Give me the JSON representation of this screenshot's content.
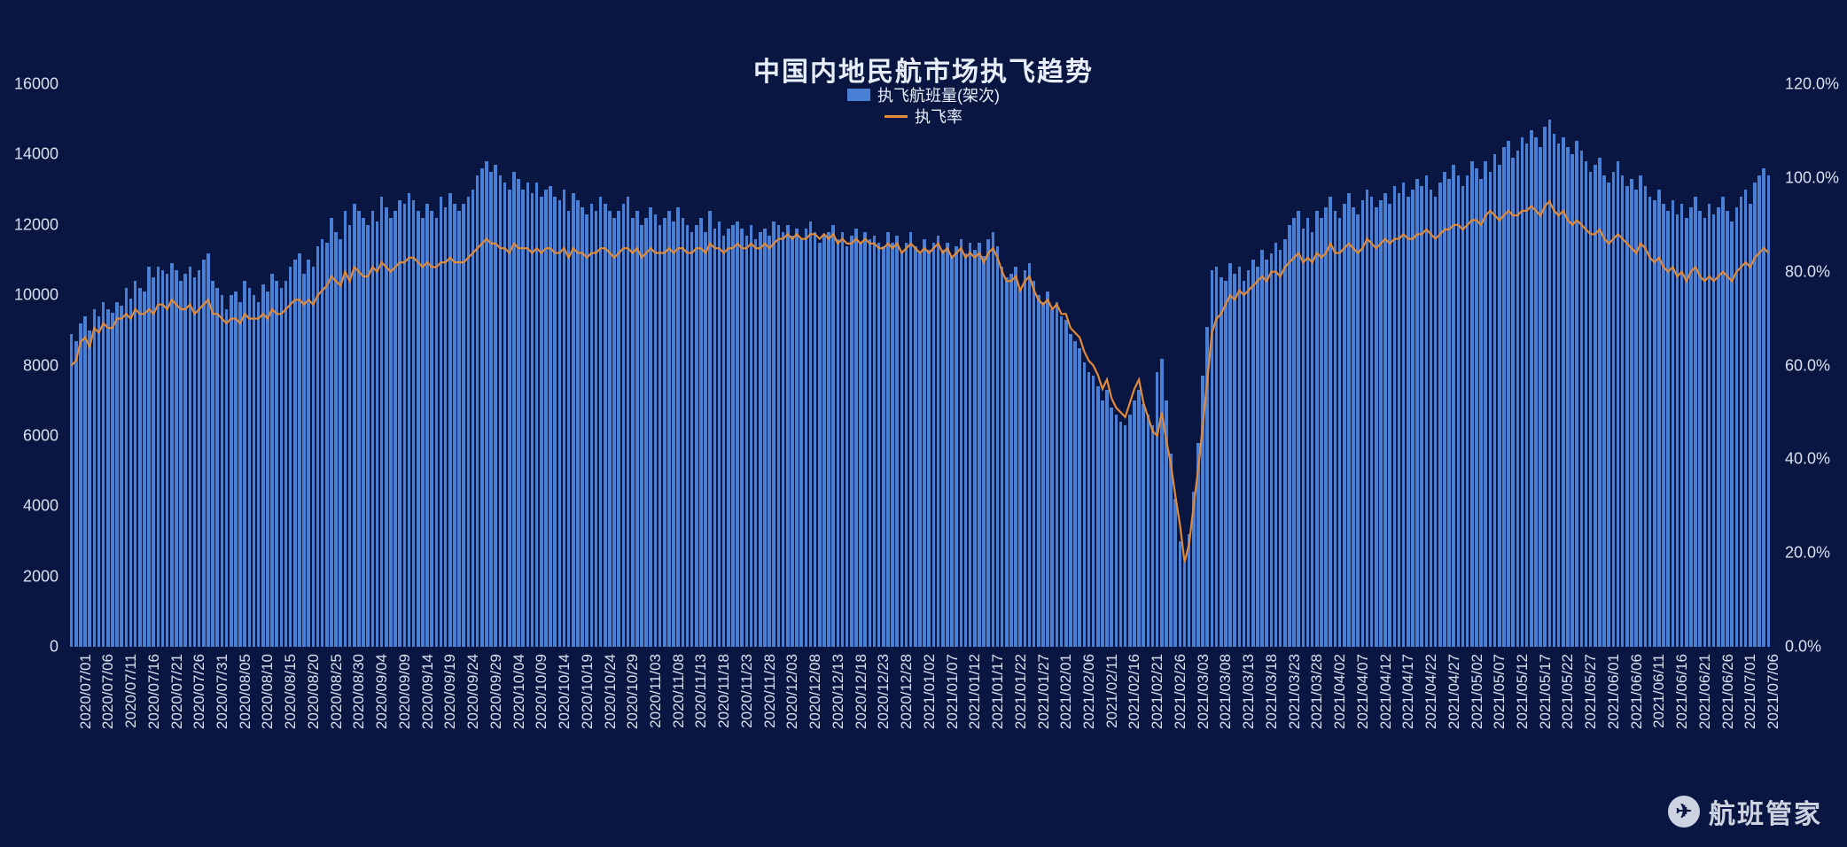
{
  "title": "中国内地民航市场执飞趋势",
  "legend": {
    "bar_label": "执飞航班量(架次)",
    "line_label": "执飞率"
  },
  "colors": {
    "background": "#0a1642",
    "bar": "#4a7fd6",
    "line": "#e08a3a",
    "text": "#e8eef7",
    "axis_text": "#d8e0ef"
  },
  "watermark": "航班管家",
  "chart": {
    "type": "bar+line",
    "y_left": {
      "min": 0,
      "max": 16000,
      "step": 2000,
      "label_fmt": "int"
    },
    "y_right": {
      "min": 0,
      "max": 120,
      "step": 20,
      "label_fmt": "pct"
    },
    "x_labels": [
      "2020/07/01",
      "2020/07/06",
      "2020/07/11",
      "2020/07/16",
      "2020/07/21",
      "2020/07/26",
      "2020/07/31",
      "2020/08/05",
      "2020/08/10",
      "2020/08/15",
      "2020/08/20",
      "2020/08/25",
      "2020/08/30",
      "2020/09/04",
      "2020/09/09",
      "2020/09/14",
      "2020/09/19",
      "2020/09/24",
      "2020/09/29",
      "2020/10/04",
      "2020/10/09",
      "2020/10/14",
      "2020/10/19",
      "2020/10/24",
      "2020/10/29",
      "2020/11/03",
      "2020/11/08",
      "2020/11/13",
      "2020/11/18",
      "2020/11/23",
      "2020/11/28",
      "2020/12/03",
      "2020/12/08",
      "2020/12/13",
      "2020/12/18",
      "2020/12/23",
      "2020/12/28",
      "2021/01/02",
      "2021/01/07",
      "2021/01/12",
      "2021/01/17",
      "2021/01/22",
      "2021/01/27",
      "2021/02/01",
      "2021/02/06",
      "2021/02/11",
      "2021/02/16",
      "2021/02/21",
      "2021/02/26",
      "2021/03/03",
      "2021/03/08",
      "2021/03/13",
      "2021/03/18",
      "2021/03/23",
      "2021/03/28",
      "2021/04/02",
      "2021/04/07",
      "2021/04/12",
      "2021/04/17",
      "2021/04/22",
      "2021/04/27",
      "2021/05/02",
      "2021/05/07",
      "2021/05/12",
      "2021/05/17",
      "2021/05/22",
      "2021/05/27",
      "2021/06/01",
      "2021/06/06",
      "2021/06/11",
      "2021/06/16",
      "2021/06/21",
      "2021/06/26",
      "2021/07/01",
      "2021/07/06"
    ],
    "bars": [
      8900,
      8700,
      9200,
      9400,
      9000,
      9600,
      9400,
      9800,
      9600,
      9500,
      9800,
      9700,
      10200,
      9900,
      10400,
      10200,
      10100,
      10800,
      10500,
      10800,
      10700,
      10600,
      10900,
      10700,
      10400,
      10600,
      10800,
      10500,
      10700,
      11000,
      11200,
      10400,
      10200,
      10000,
      9600,
      10000,
      10100,
      9800,
      10400,
      10200,
      10000,
      9800,
      10300,
      10100,
      10600,
      10400,
      10200,
      10400,
      10800,
      11000,
      11200,
      10600,
      11000,
      10800,
      11400,
      11600,
      11500,
      12200,
      11800,
      11600,
      12400,
      12000,
      12600,
      12400,
      12200,
      12000,
      12400,
      12100,
      12800,
      12500,
      12200,
      12400,
      12700,
      12600,
      12900,
      12700,
      12400,
      12200,
      12600,
      12400,
      12200,
      12800,
      12500,
      12900,
      12600,
      12400,
      12600,
      12800,
      13000,
      13400,
      13600,
      13800,
      13500,
      13700,
      13400,
      13200,
      13000,
      13500,
      13300,
      13000,
      13200,
      12900,
      13200,
      12800,
      13000,
      13100,
      12800,
      12700,
      13000,
      12400,
      12900,
      12700,
      12500,
      12300,
      12600,
      12400,
      12800,
      12600,
      12400,
      12200,
      12400,
      12600,
      12800,
      12200,
      12400,
      12000,
      12200,
      12500,
      12300,
      12000,
      12200,
      12400,
      12100,
      12500,
      12200,
      12000,
      11800,
      12000,
      12200,
      11800,
      12400,
      11900,
      12100,
      11700,
      11900,
      12000,
      12100,
      11900,
      11700,
      12000,
      11600,
      11800,
      11900,
      11700,
      12100,
      12000,
      11800,
      12000,
      11700,
      11900,
      11600,
      11900,
      12100,
      11800,
      11500,
      11700,
      11800,
      12000,
      11600,
      11800,
      11400,
      11700,
      11900,
      11500,
      11800,
      11600,
      11700,
      11500,
      11400,
      11800,
      11500,
      11700,
      11200,
      11500,
      11800,
      11400,
      11200,
      11600,
      11300,
      11500,
      11700,
      11300,
      11500,
      11100,
      11400,
      11600,
      11200,
      11500,
      11300,
      11500,
      11100,
      11600,
      11800,
      11400,
      10800,
      10500,
      10600,
      10800,
      10200,
      10700,
      10900,
      10400,
      10000,
      9800,
      10100,
      9600,
      9800,
      9400,
      9300,
      8900,
      8700,
      8500,
      8100,
      7800,
      7700,
      7400,
      7000,
      7300,
      6800,
      6600,
      6400,
      6300,
      6600,
      7000,
      7300,
      6900,
      6600,
      6300,
      7800,
      8200,
      7000,
      5500,
      4200,
      3000,
      2400,
      3200,
      4400,
      5800,
      7700,
      9100,
      10700,
      10800,
      10500,
      10400,
      10900,
      10600,
      10800,
      10400,
      10700,
      11000,
      10800,
      11300,
      11000,
      11200,
      11500,
      11300,
      11600,
      12000,
      12200,
      12400,
      11900,
      12200,
      11800,
      12400,
      12200,
      12500,
      12800,
      12400,
      12200,
      12600,
      12900,
      12500,
      12300,
      12700,
      13000,
      12800,
      12500,
      12700,
      12900,
      12600,
      13100,
      12900,
      13200,
      12800,
      13000,
      13300,
      13100,
      13400,
      13000,
      12800,
      13200,
      13500,
      13300,
      13700,
      13400,
      13100,
      13400,
      13800,
      13600,
      13300,
      13800,
      13500,
      14000,
      13700,
      14200,
      14400,
      13900,
      14100,
      14500,
      14300,
      14700,
      14500,
      14200,
      14800,
      15000,
      14600,
      14300,
      14500,
      14200,
      14000,
      14400,
      14100,
      13800,
      13500,
      13700,
      13900,
      13400,
      13200,
      13500,
      13800,
      13400,
      13100,
      13300,
      13000,
      13400,
      13100,
      12800,
      12700,
      13000,
      12600,
      12400,
      12700,
      12300,
      12600,
      12200,
      12500,
      12800,
      12400,
      12200,
      12600,
      12300,
      12500,
      12800,
      12400,
      12100,
      12500,
      12800,
      13000,
      12600,
      13200,
      13400,
      13600,
      13400
    ],
    "line_pct": [
      60,
      61,
      65,
      66,
      64,
      68,
      67,
      69,
      68,
      68,
      70,
      70,
      71,
      70,
      72,
      71,
      71,
      72,
      71,
      73,
      73,
      72,
      74,
      73,
      72,
      72,
      73,
      71,
      72,
      73,
      74,
      71,
      71,
      70,
      69,
      70,
      70,
      69,
      71,
      70,
      70,
      70,
      71,
      70,
      72,
      71,
      71,
      72,
      73,
      74,
      74,
      73,
      74,
      73,
      75,
      76,
      77,
      79,
      78,
      77,
      80,
      78,
      81,
      80,
      79,
      79,
      81,
      80,
      82,
      81,
      80,
      81,
      82,
      82,
      83,
      83,
      82,
      81,
      82,
      81,
      81,
      82,
      82,
      83,
      82,
      82,
      82,
      83,
      84,
      85,
      86,
      87,
      86,
      86,
      85,
      85,
      84,
      86,
      85,
      85,
      85,
      84,
      85,
      84,
      85,
      85,
      84,
      84,
      85,
      83,
      85,
      84,
      84,
      83,
      84,
      84,
      85,
      85,
      84,
      83,
      84,
      85,
      85,
      84,
      85,
      83,
      84,
      85,
      84,
      84,
      84,
      85,
      84,
      85,
      85,
      84,
      84,
      85,
      85,
      84,
      86,
      85,
      85,
      84,
      85,
      85,
      86,
      85,
      85,
      86,
      85,
      85,
      86,
      85,
      86,
      87,
      87,
      88,
      87,
      88,
      87,
      87,
      88,
      88,
      87,
      88,
      87,
      88,
      86,
      87,
      86,
      86,
      87,
      86,
      87,
      86,
      86,
      85,
      85,
      86,
      85,
      86,
      84,
      85,
      86,
      85,
      84,
      85,
      84,
      85,
      86,
      84,
      85,
      83,
      84,
      85,
      83,
      84,
      83,
      84,
      82,
      84,
      85,
      83,
      80,
      78,
      78,
      79,
      76,
      78,
      79,
      76,
      74,
      73,
      74,
      72,
      73,
      71,
      71,
      68,
      67,
      66,
      63,
      61,
      60,
      58,
      55,
      57,
      53,
      51,
      50,
      49,
      52,
      55,
      57,
      52,
      49,
      46,
      45,
      50,
      44,
      39,
      32,
      26,
      18,
      22,
      30,
      38,
      47,
      57,
      67,
      70,
      71,
      73,
      75,
      74,
      76,
      75,
      76,
      77,
      78,
      79,
      78,
      80,
      80,
      79,
      81,
      82,
      83,
      84,
      82,
      83,
      82,
      84,
      83,
      84,
      86,
      84,
      84,
      85,
      86,
      85,
      84,
      85,
      87,
      86,
      85,
      86,
      87,
      86,
      87,
      87,
      88,
      87,
      87,
      88,
      88,
      89,
      88,
      87,
      88,
      89,
      89,
      90,
      90,
      89,
      90,
      91,
      91,
      90,
      92,
      93,
      92,
      91,
      92,
      93,
      92,
      92,
      93,
      93,
      94,
      93,
      92,
      94,
      95,
      93,
      92,
      93,
      91,
      90,
      91,
      90,
      89,
      88,
      88,
      89,
      87,
      86,
      87,
      88,
      87,
      86,
      85,
      84,
      86,
      85,
      83,
      82,
      83,
      81,
      80,
      81,
      79,
      80,
      78,
      80,
      81,
      79,
      78,
      79,
      78,
      79,
      80,
      79,
      78,
      80,
      81,
      82,
      81,
      83,
      84,
      85,
      84
    ]
  }
}
